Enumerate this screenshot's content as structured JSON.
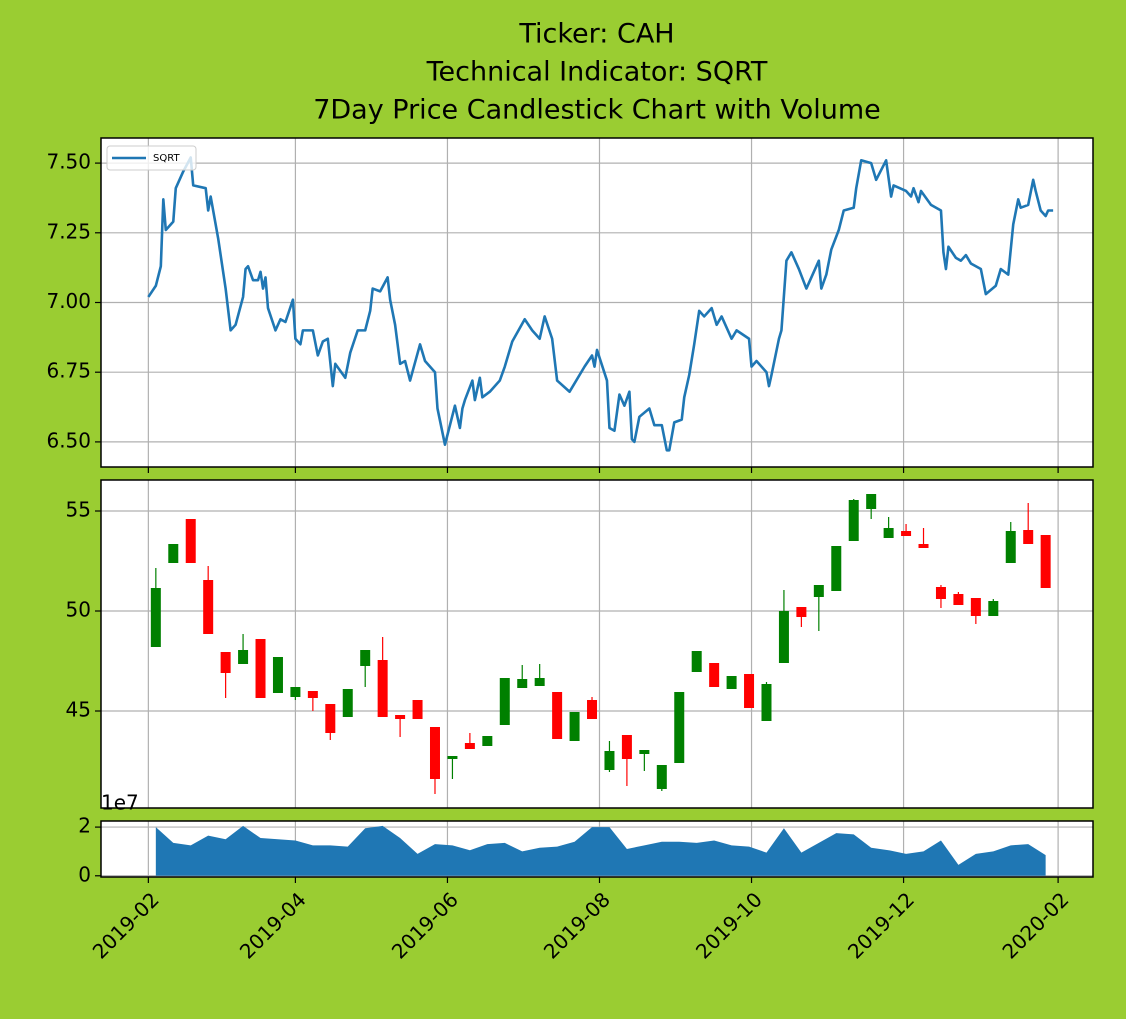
{
  "chart_data": [
    {
      "type": "line",
      "title": [
        "Ticker: CAH",
        "Technical Indicator: SQRT",
        "7Day Price Candlestick Chart with Volume"
      ],
      "x": [
        "2019-02-01",
        "2019-02-04",
        "2019-02-06",
        "2019-02-07",
        "2019-02-08",
        "2019-02-11",
        "2019-02-12",
        "2019-02-15",
        "2019-02-18",
        "2019-02-19",
        "2019-02-24",
        "2019-02-25",
        "2019-02-26",
        "2019-03-01",
        "2019-03-04",
        "2019-03-06",
        "2019-03-08",
        "2019-03-11",
        "2019-03-12",
        "2019-03-13",
        "2019-03-15",
        "2019-03-17",
        "2019-03-18",
        "2019-03-19",
        "2019-03-20",
        "2019-03-21",
        "2019-03-24",
        "2019-03-26",
        "2019-03-28",
        "2019-03-31",
        "2019-04-01",
        "2019-04-03",
        "2019-04-04",
        "2019-04-08",
        "2019-04-10",
        "2019-04-12",
        "2019-04-14",
        "2019-04-16",
        "2019-04-17",
        "2019-04-21",
        "2019-04-23",
        "2019-04-26",
        "2019-04-29",
        "2019-05-01",
        "2019-05-02",
        "2019-05-05",
        "2019-05-08",
        "2019-05-09",
        "2019-05-11",
        "2019-05-13",
        "2019-05-15",
        "2019-05-17",
        "2019-05-21",
        "2019-05-23",
        "2019-05-27",
        "2019-05-28",
        "2019-05-31",
        "2019-06-02",
        "2019-06-04",
        "2019-06-06",
        "2019-06-07",
        "2019-06-08",
        "2019-06-11",
        "2019-06-12",
        "2019-06-14",
        "2019-06-15",
        "2019-06-18",
        "2019-06-22",
        "2019-06-24",
        "2019-06-27",
        "2019-07-02",
        "2019-07-05",
        "2019-07-08",
        "2019-07-10",
        "2019-07-13",
        "2019-07-15",
        "2019-07-20",
        "2019-07-26",
        "2019-07-29",
        "2019-07-30",
        "2019-07-31",
        "2019-08-04",
        "2019-08-05",
        "2019-08-07",
        "2019-08-09",
        "2019-08-11",
        "2019-08-13",
        "2019-08-14",
        "2019-08-15",
        "2019-08-17",
        "2019-08-21",
        "2019-08-23",
        "2019-08-26",
        "2019-08-28",
        "2019-08-29",
        "2019-08-31",
        "2019-09-03",
        "2019-09-04",
        "2019-09-06",
        "2019-09-08",
        "2019-09-10",
        "2019-09-12",
        "2019-09-15",
        "2019-09-17",
        "2019-09-19",
        "2019-09-23",
        "2019-09-25",
        "2019-09-30",
        "2019-10-01",
        "2019-10-03",
        "2019-10-07",
        "2019-10-08",
        "2019-10-09",
        "2019-10-12",
        "2019-10-13",
        "2019-10-15",
        "2019-10-17",
        "2019-10-20",
        "2019-10-23",
        "2019-10-25",
        "2019-10-28",
        "2019-10-29",
        "2019-10-31",
        "2019-11-02",
        "2019-11-05",
        "2019-11-07",
        "2019-11-11",
        "2019-11-12",
        "2019-11-14",
        "2019-11-18",
        "2019-11-20",
        "2019-11-24",
        "2019-11-26",
        "2019-11-27",
        "2019-12-02",
        "2019-12-04",
        "2019-12-05",
        "2019-12-07",
        "2019-12-08",
        "2019-12-12",
        "2019-12-16",
        "2019-12-17",
        "2019-12-18",
        "2019-12-19",
        "2019-12-22",
        "2019-12-24",
        "2019-12-26",
        "2019-12-28",
        "2020-01-01",
        "2020-01-03",
        "2020-01-07",
        "2020-01-09",
        "2020-01-12",
        "2020-01-14",
        "2020-01-16",
        "2020-01-17",
        "2020-01-20",
        "2020-01-22",
        "2020-01-23",
        "2020-01-25",
        "2020-01-27",
        "2020-01-28",
        "2020-01-30"
      ],
      "series": [
        {
          "name": "SQRT",
          "color": "#1f77b4",
          "values": [
            7.02,
            7.06,
            7.13,
            7.37,
            7.26,
            7.29,
            7.41,
            7.47,
            7.52,
            7.42,
            7.41,
            7.33,
            7.38,
            7.23,
            7.05,
            6.9,
            6.92,
            7.02,
            7.12,
            7.13,
            7.08,
            7.08,
            7.11,
            7.05,
            7.09,
            6.98,
            6.9,
            6.94,
            6.93,
            7.01,
            6.87,
            6.85,
            6.9,
            6.9,
            6.81,
            6.86,
            6.87,
            6.7,
            6.78,
            6.73,
            6.82,
            6.9,
            6.9,
            6.97,
            7.05,
            7.04,
            7.09,
            7.01,
            6.92,
            6.78,
            6.79,
            6.72,
            6.85,
            6.79,
            6.75,
            6.62,
            6.49,
            6.56,
            6.63,
            6.55,
            6.62,
            6.65,
            6.72,
            6.65,
            6.73,
            6.66,
            6.68,
            6.72,
            6.77,
            6.86,
            6.94,
            6.9,
            6.87,
            6.95,
            6.87,
            6.72,
            6.68,
            6.77,
            6.81,
            6.77,
            6.83,
            6.72,
            6.55,
            6.54,
            6.67,
            6.63,
            6.68,
            6.51,
            6.5,
            6.59,
            6.62,
            6.56,
            6.56,
            6.47,
            6.47,
            6.57,
            6.58,
            6.66,
            6.74,
            6.85,
            6.97,
            6.95,
            6.98,
            6.92,
            6.95,
            6.87,
            6.9,
            6.87,
            6.77,
            6.79,
            6.75,
            6.7,
            6.74,
            6.87,
            6.9,
            7.15,
            7.18,
            7.12,
            7.05,
            7.09,
            7.15,
            7.05,
            7.1,
            7.19,
            7.26,
            7.33,
            7.34,
            7.41,
            7.51,
            7.5,
            7.44,
            7.51,
            7.38,
            7.42,
            7.4,
            7.38,
            7.41,
            7.36,
            7.4,
            7.35,
            7.33,
            7.18,
            7.12,
            7.2,
            7.16,
            7.15,
            7.17,
            7.14,
            7.12,
            7.03,
            7.06,
            7.12,
            7.1,
            7.28,
            7.37,
            7.34,
            7.35,
            7.44,
            7.4,
            7.33,
            7.31,
            7.33,
            7.33
          ]
        }
      ],
      "xlim": [
        "2019-01-13",
        "2020-02-15"
      ],
      "xticks": [
        "2019-02",
        "2019-04",
        "2019-06",
        "2019-08",
        "2019-10",
        "2019-12",
        "2020-02"
      ],
      "ylim": [
        6.41,
        7.59
      ],
      "yticks": [
        {
          "value": 6.5,
          "label": "6.50"
        },
        6.75,
        {
          "value": 7,
          "label": "7.00"
        },
        7.25,
        {
          "value": 7.5,
          "label": "7.50"
        }
      ],
      "grid": true,
      "legend": "upper left"
    },
    {
      "type": "candlestick",
      "x": [
        "2019-02-04",
        "2019-02-11",
        "2019-02-18",
        "2019-02-25",
        "2019-03-04",
        "2019-03-11",
        "2019-03-18",
        "2019-03-25",
        "2019-04-01",
        "2019-04-08",
        "2019-04-15",
        "2019-04-22",
        "2019-04-29",
        "2019-05-06",
        "2019-05-13",
        "2019-05-20",
        "2019-05-27",
        "2019-06-03",
        "2019-06-10",
        "2019-06-17",
        "2019-06-24",
        "2019-07-01",
        "2019-07-08",
        "2019-07-15",
        "2019-07-22",
        "2019-07-29",
        "2019-08-05",
        "2019-08-12",
        "2019-08-19",
        "2019-08-26",
        "2019-09-02",
        "2019-09-09",
        "2019-09-16",
        "2019-09-23",
        "2019-09-30",
        "2019-10-07",
        "2019-10-14",
        "2019-10-21",
        "2019-10-28",
        "2019-11-04",
        "2019-11-11",
        "2019-11-18",
        "2019-11-25",
        "2019-12-02",
        "2019-12-09",
        "2019-12-16",
        "2019-12-23",
        "2019-12-30",
        "2020-01-06",
        "2020-01-13",
        "2020-01-20",
        "2020-01-27"
      ],
      "open": [
        48.2,
        52.4,
        54.6,
        51.55,
        47.95,
        47.35,
        48.6,
        45.9,
        45.7,
        46.0,
        45.35,
        44.7,
        47.25,
        47.55,
        44.8,
        45.55,
        44.2,
        42.6,
        43.4,
        43.25,
        44.3,
        46.15,
        46.25,
        45.95,
        43.5,
        45.55,
        42.05,
        43.8,
        42.85,
        41.1,
        42.4,
        46.95,
        47.4,
        46.1,
        46.85,
        44.5,
        47.4,
        50.2,
        50.7,
        51.0,
        53.5,
        55.1,
        53.65,
        54.0,
        53.35,
        51.2,
        50.85,
        50.65,
        49.75,
        52.4,
        54.05,
        53.8
      ],
      "high": [
        52.15,
        53.35,
        54.6,
        52.25,
        47.95,
        48.85,
        48.6,
        47.7,
        46.2,
        46.0,
        45.35,
        46.1,
        48.05,
        48.7,
        44.8,
        45.55,
        44.2,
        42.75,
        43.9,
        43.75,
        46.65,
        47.3,
        47.35,
        45.95,
        44.95,
        45.7,
        43.5,
        43.8,
        43.05,
        42.3,
        45.95,
        48.0,
        47.4,
        46.75,
        46.85,
        46.45,
        51.05,
        50.2,
        51.3,
        53.25,
        55.6,
        55.85,
        54.7,
        54.35,
        54.15,
        51.3,
        50.95,
        50.65,
        50.6,
        54.45,
        55.4,
        53.8
      ],
      "low": [
        48.2,
        52.4,
        52.4,
        48.85,
        45.65,
        47.35,
        45.65,
        45.9,
        45.55,
        45.0,
        43.55,
        44.7,
        46.2,
        44.7,
        43.7,
        44.6,
        40.85,
        41.6,
        43.1,
        43.25,
        44.3,
        46.15,
        46.25,
        43.6,
        43.5,
        44.6,
        41.95,
        41.25,
        42.0,
        41.0,
        42.4,
        46.95,
        46.2,
        46.1,
        45.15,
        44.5,
        47.4,
        49.2,
        49.0,
        51.0,
        53.5,
        54.6,
        53.65,
        53.75,
        53.15,
        50.15,
        50.3,
        49.35,
        49.75,
        52.4,
        53.35,
        51.15
      ],
      "close": [
        51.15,
        53.35,
        52.4,
        48.85,
        46.9,
        48.05,
        45.65,
        47.7,
        46.2,
        45.65,
        43.9,
        46.1,
        48.05,
        44.7,
        44.6,
        44.6,
        41.6,
        42.75,
        43.1,
        43.75,
        46.65,
        46.6,
        46.65,
        43.6,
        44.95,
        44.6,
        43.0,
        42.6,
        43.05,
        42.3,
        45.95,
        48.0,
        46.2,
        46.75,
        45.15,
        46.35,
        50.0,
        49.7,
        51.3,
        53.25,
        55.55,
        55.85,
        54.15,
        53.75,
        53.15,
        50.6,
        50.3,
        49.75,
        50.5,
        54.0,
        53.35,
        51.15
      ],
      "up_color": "#008000",
      "down_color": "#ff0000",
      "xlim": [
        "2019-01-13",
        "2020-02-15"
      ],
      "xticks": [
        "2019-02",
        "2019-04",
        "2019-06",
        "2019-08",
        "2019-10",
        "2019-12",
        "2020-02"
      ],
      "ylim": [
        40.15,
        56.55
      ],
      "yticks": [
        45,
        50,
        55
      ],
      "grid": true
    },
    {
      "type": "area",
      "x": [
        "2019-02-04",
        "2019-02-11",
        "2019-02-18",
        "2019-02-25",
        "2019-03-04",
        "2019-03-11",
        "2019-03-18",
        "2019-03-25",
        "2019-04-01",
        "2019-04-08",
        "2019-04-15",
        "2019-04-22",
        "2019-04-29",
        "2019-05-06",
        "2019-05-13",
        "2019-05-20",
        "2019-05-27",
        "2019-06-03",
        "2019-06-10",
        "2019-06-17",
        "2019-06-24",
        "2019-07-01",
        "2019-07-08",
        "2019-07-15",
        "2019-07-22",
        "2019-07-29",
        "2019-08-05",
        "2019-08-12",
        "2019-08-19",
        "2019-08-26",
        "2019-09-02",
        "2019-09-09",
        "2019-09-16",
        "2019-09-23",
        "2019-09-30",
        "2019-10-07",
        "2019-10-14",
        "2019-10-21",
        "2019-10-28",
        "2019-11-04",
        "2019-11-11",
        "2019-11-18",
        "2019-11-25",
        "2019-12-02",
        "2019-12-09",
        "2019-12-16",
        "2019-12-23",
        "2019-12-30",
        "2020-01-06",
        "2020-01-13",
        "2020-01-20",
        "2020-01-27"
      ],
      "values": [
        20000000,
        13500000,
        12500000,
        16500000,
        15000000,
        20500000,
        15500000,
        15000000,
        14500000,
        12500000,
        12500000,
        12000000,
        19500000,
        20500000,
        15500000,
        9000000,
        13000000,
        12500000,
        10500000,
        13000000,
        13500000,
        10000000,
        11500000,
        12000000,
        14000000,
        20000000,
        20000000,
        11000000,
        12500000,
        14000000,
        14000000,
        13500000,
        14500000,
        12500000,
        12000000,
        9500000,
        19500000,
        9500000,
        13500000,
        17500000,
        17000000,
        11500000,
        10500000,
        9000000,
        10000000,
        14500000,
        4500000,
        9000000,
        10000000,
        12500000,
        13000000,
        8500000
      ],
      "color": "#1f77b4",
      "xlim": [
        "2019-01-13",
        "2020-02-15"
      ],
      "xticks": [
        {
          "value": "2019-02",
          "label": "2019-02"
        },
        {
          "value": "2019-04",
          "label": "2019-04"
        },
        {
          "value": "2019-06",
          "label": "2019-06"
        },
        {
          "value": "2019-08",
          "label": "2019-08"
        },
        {
          "value": "2019-10",
          "label": "2019-10"
        },
        {
          "value": "2019-12",
          "label": "2019-12"
        },
        {
          "value": "2020-02",
          "label": "2020-02"
        }
      ],
      "ylim": [
        -500000,
        22500000
      ],
      "yticks": [
        0,
        {
          "value": 20000000,
          "label": "2"
        }
      ],
      "y_offset_label": "1e7",
      "grid": true
    }
  ]
}
